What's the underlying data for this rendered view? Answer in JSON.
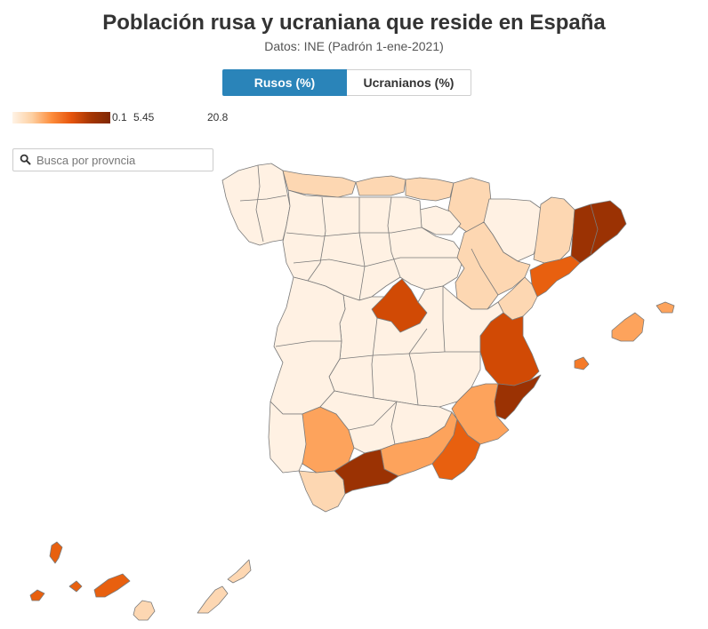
{
  "header": {
    "title": "Población rusa y ucraniana que reside en España",
    "subtitle": "Datos: INE (Padrón 1-ene-2021)"
  },
  "tabs": [
    {
      "label": "Rusos (%)",
      "active": true
    },
    {
      "label": "Ucranianos (%)",
      "active": false
    }
  ],
  "legend": {
    "labels": [
      "0.1",
      "5.45",
      "20.8"
    ],
    "colors": [
      "#fff3e6",
      "#fdd0a2",
      "#fd8d3c",
      "#e6550d",
      "#a63603",
      "#7f2704"
    ]
  },
  "search": {
    "placeholder": "Busca por provncia",
    "value": "",
    "icon": "search-icon"
  },
  "map": {
    "colors": {
      "c0": "#fff1e3",
      "c1": "#fdd7b2",
      "c2": "#fda35c",
      "c3": "#f57a28",
      "c4": "#e8600f",
      "c5": "#d14a05",
      "c6": "#9b3203"
    },
    "regions": [
      {
        "id": "galicia",
        "level": "c0"
      },
      {
        "id": "asturias",
        "level": "c1"
      },
      {
        "id": "cantabria",
        "level": "c1"
      },
      {
        "id": "pais-vasco",
        "level": "c1"
      },
      {
        "id": "navarra",
        "level": "c1"
      },
      {
        "id": "la-rioja",
        "level": "c0"
      },
      {
        "id": "castilla-leon",
        "level": "c0"
      },
      {
        "id": "zaragoza-teruel",
        "level": "c1"
      },
      {
        "id": "huesca",
        "level": "c0"
      },
      {
        "id": "lleida",
        "level": "c1"
      },
      {
        "id": "catalunya-east",
        "level": "c6"
      },
      {
        "id": "tarragona",
        "level": "c4"
      },
      {
        "id": "castellon",
        "level": "c1"
      },
      {
        "id": "extremadura",
        "level": "c0"
      },
      {
        "id": "castilla-la-mancha",
        "level": "c0"
      },
      {
        "id": "madrid",
        "level": "c5"
      },
      {
        "id": "valencia",
        "level": "c5"
      },
      {
        "id": "alicante",
        "level": "c6"
      },
      {
        "id": "murcia",
        "level": "c2"
      },
      {
        "id": "sevilla",
        "level": "c2"
      },
      {
        "id": "huelva",
        "level": "c0"
      },
      {
        "id": "cordoba-jaen",
        "level": "c0"
      },
      {
        "id": "granada",
        "level": "c2"
      },
      {
        "id": "almeria",
        "level": "c4"
      },
      {
        "id": "cadiz",
        "level": "c1"
      },
      {
        "id": "malaga",
        "level": "c6"
      },
      {
        "id": "mallorca",
        "level": "c2"
      },
      {
        "id": "menorca",
        "level": "c2"
      },
      {
        "id": "ibiza",
        "level": "c3"
      },
      {
        "id": "la-palma",
        "level": "c4"
      },
      {
        "id": "la-gomera",
        "level": "c4"
      },
      {
        "id": "el-hierro",
        "level": "c4"
      },
      {
        "id": "tenerife",
        "level": "c4"
      },
      {
        "id": "gran-canaria",
        "level": "c1"
      },
      {
        "id": "fuerteventura",
        "level": "c1"
      },
      {
        "id": "lanzarote",
        "level": "c1"
      }
    ]
  }
}
